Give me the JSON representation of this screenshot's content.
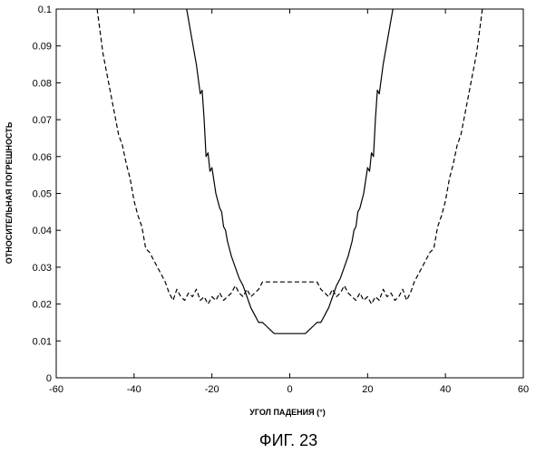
{
  "caption": "ФИГ. 23",
  "chart_data": {
    "type": "line",
    "xlabel": "УГОЛ ПАДЕНИЯ (°)",
    "ylabel": "ОТНОСИТЕЛЬНАЯ ПОГРЕШНОСТЬ",
    "xlim": [
      -60,
      60
    ],
    "ylim": [
      0,
      0.1
    ],
    "xticks": [
      "-60",
      "-40",
      "-20",
      "0",
      "20",
      "40",
      "60"
    ],
    "yticks": [
      "0",
      "0.01",
      "0.02",
      "0.03",
      "0.04",
      "0.05",
      "0.06",
      "0.07",
      "0.08",
      "0.09",
      "0.1"
    ],
    "grid": false,
    "series": [
      {
        "style": "solid",
        "x": [
          -26.5,
          -24,
          -23,
          -22.5,
          -22,
          -21.5,
          -21,
          -20.5,
          -20,
          -19,
          -18,
          -17.5,
          -17,
          -16.5,
          -16,
          -15,
          -14,
          -13,
          -12,
          -11,
          -10,
          -9,
          -8,
          -7,
          -6,
          -5,
          -4,
          -3,
          -2,
          -1,
          0,
          1,
          2,
          3,
          4,
          5,
          6,
          7,
          8,
          9,
          10,
          11,
          12,
          13,
          14,
          15,
          16,
          16.5,
          17,
          17.5,
          18,
          19,
          20,
          20.5,
          21,
          21.5,
          22,
          22.5,
          23,
          24,
          26.5
        ],
        "y": [
          0.1,
          0.085,
          0.077,
          0.078,
          0.07,
          0.06,
          0.061,
          0.056,
          0.057,
          0.05,
          0.046,
          0.045,
          0.041,
          0.04,
          0.037,
          0.033,
          0.03,
          0.027,
          0.025,
          0.022,
          0.019,
          0.017,
          0.015,
          0.015,
          0.014,
          0.013,
          0.012,
          0.012,
          0.012,
          0.012,
          0.012,
          0.012,
          0.012,
          0.012,
          0.012,
          0.013,
          0.014,
          0.015,
          0.015,
          0.017,
          0.019,
          0.022,
          0.025,
          0.027,
          0.03,
          0.033,
          0.037,
          0.04,
          0.041,
          0.045,
          0.046,
          0.05,
          0.057,
          0.056,
          0.061,
          0.06,
          0.07,
          0.078,
          0.077,
          0.085,
          0.1
        ]
      },
      {
        "style": "dashed",
        "x": [
          -49.5,
          -48,
          -46,
          -44,
          -43,
          -42,
          -41,
          -40,
          -39,
          -38,
          -37,
          -36,
          -35,
          -34,
          -33,
          -32,
          -31,
          -30,
          -29,
          -28,
          -27,
          -26,
          -25,
          -24,
          -23,
          -22,
          -21,
          -20,
          -19,
          -18,
          -17,
          -16,
          -15,
          -14,
          -13,
          -12,
          -11,
          -10,
          -9,
          -8,
          -7,
          -6,
          -5,
          -4,
          -3,
          -2,
          -1,
          0,
          1,
          2,
          3,
          4,
          5,
          6,
          7,
          8,
          9,
          10,
          11,
          12,
          13,
          14,
          15,
          16,
          17,
          18,
          19,
          20,
          21,
          22,
          23,
          24,
          25,
          26,
          27,
          28,
          29,
          30,
          31,
          32,
          33,
          34,
          35,
          36,
          37,
          38,
          39,
          40,
          41,
          42,
          43,
          44,
          46,
          48,
          49.5
        ],
        "y": [
          0.1,
          0.088,
          0.077,
          0.066,
          0.063,
          0.058,
          0.054,
          0.048,
          0.044,
          0.041,
          0.035,
          0.034,
          0.032,
          0.03,
          0.028,
          0.026,
          0.023,
          0.021,
          0.024,
          0.022,
          0.021,
          0.023,
          0.022,
          0.024,
          0.021,
          0.022,
          0.02,
          0.022,
          0.021,
          0.023,
          0.021,
          0.022,
          0.023,
          0.025,
          0.023,
          0.022,
          0.024,
          0.022,
          0.023,
          0.024,
          0.026,
          0.026,
          0.026,
          0.026,
          0.026,
          0.026,
          0.026,
          0.026,
          0.026,
          0.026,
          0.026,
          0.026,
          0.026,
          0.026,
          0.026,
          0.024,
          0.023,
          0.022,
          0.024,
          0.022,
          0.023,
          0.025,
          0.023,
          0.022,
          0.021,
          0.023,
          0.021,
          0.022,
          0.02,
          0.022,
          0.021,
          0.024,
          0.022,
          0.023,
          0.021,
          0.022,
          0.024,
          0.021,
          0.023,
          0.026,
          0.028,
          0.03,
          0.032,
          0.034,
          0.035,
          0.041,
          0.044,
          0.048,
          0.054,
          0.058,
          0.063,
          0.066,
          0.077,
          0.088,
          0.1
        ]
      }
    ]
  }
}
